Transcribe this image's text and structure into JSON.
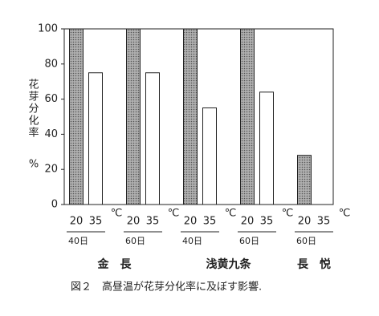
{
  "chart_data": {
    "type": "bar",
    "ylabel": "花芽分化率",
    "ylabel_unit": "%",
    "categories": [
      "40日",
      "60日",
      "40日",
      "60日",
      "60日"
    ],
    "group_labels": [
      "金　長",
      null,
      "浅黄九条",
      null,
      "長　悦"
    ],
    "unit": "℃",
    "series": [
      {
        "name": "20",
        "color": "#9a9a9a",
        "values": [
          100,
          100,
          100,
          100,
          28
        ]
      },
      {
        "name": "35",
        "color": "#ffffff",
        "values": [
          75,
          75,
          55,
          64,
          null
        ]
      }
    ],
    "ylim": [
      0,
      100
    ],
    "yticks": [
      0,
      20,
      40,
      60,
      80,
      100
    ],
    "caption": "図２　高昼温が花芽分化率に及ぼす影響."
  }
}
